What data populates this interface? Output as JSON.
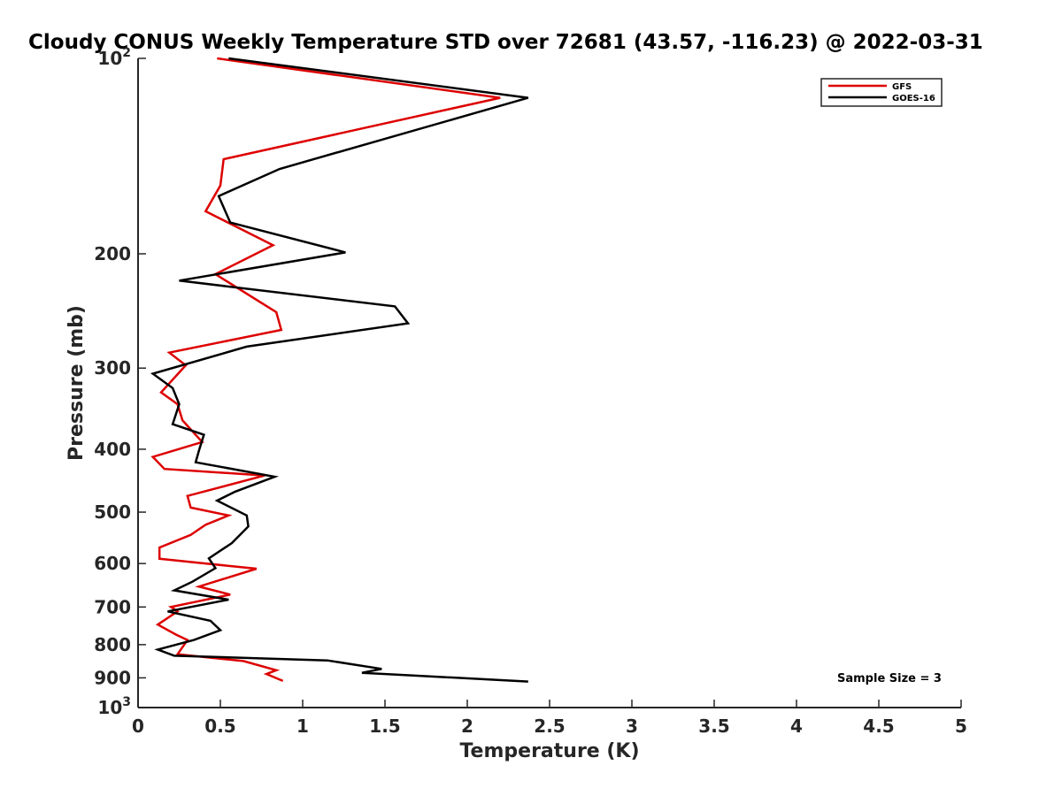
{
  "chart_data": {
    "type": "line",
    "title": "Cloudy CONUS Weekly Temperature STD over 72681 (43.57, -116.23) @ 2022-03-31",
    "xlabel": "Temperature (K)",
    "ylabel": "Pressure (mb)",
    "xlim": [
      0,
      5
    ],
    "ylim": [
      100,
      1000
    ],
    "y_scale": "log",
    "y_reversed": true,
    "x_ticks": [
      "0",
      "0.5",
      "1",
      "1.5",
      "2",
      "2.5",
      "3",
      "3.5",
      "4",
      "4.5",
      "5"
    ],
    "y_ticks": [
      {
        "value": 100,
        "base": "10",
        "exp": "2"
      },
      {
        "value": 200,
        "label": "200"
      },
      {
        "value": 300,
        "label": "300"
      },
      {
        "value": 400,
        "label": "400"
      },
      {
        "value": 500,
        "label": "500"
      },
      {
        "value": 600,
        "label": "600"
      },
      {
        "value": 700,
        "label": "700"
      },
      {
        "value": 800,
        "label": "800"
      },
      {
        "value": 900,
        "label": "900"
      },
      {
        "value": 1000,
        "base": "10",
        "exp": "3"
      }
    ],
    "grid": false,
    "legend_position": "top-right",
    "annotation": "Sample Size = 3",
    "series": [
      {
        "name": "GFS",
        "color": "#dd0000",
        "points": [
          [
            0.48,
            100
          ],
          [
            2.2,
            115
          ],
          [
            0.52,
            143
          ],
          [
            0.5,
            157
          ],
          [
            0.41,
            172
          ],
          [
            0.82,
            194
          ],
          [
            0.47,
            215
          ],
          [
            0.84,
            246
          ],
          [
            0.87,
            262
          ],
          [
            0.19,
            284
          ],
          [
            0.29,
            297
          ],
          [
            0.14,
            327
          ],
          [
            0.24,
            341
          ],
          [
            0.27,
            361
          ],
          [
            0.39,
            390
          ],
          [
            0.09,
            411
          ],
          [
            0.16,
            429
          ],
          [
            0.77,
            439
          ],
          [
            0.3,
            472
          ],
          [
            0.32,
            492
          ],
          [
            0.55,
            506
          ],
          [
            0.41,
            523
          ],
          [
            0.32,
            542
          ],
          [
            0.13,
            567
          ],
          [
            0.13,
            590
          ],
          [
            0.72,
            611
          ],
          [
            0.37,
            651
          ],
          [
            0.56,
            670
          ],
          [
            0.2,
            700
          ],
          [
            0.24,
            711
          ],
          [
            0.12,
            745
          ],
          [
            0.23,
            772
          ],
          [
            0.3,
            787
          ],
          [
            0.24,
            828
          ],
          [
            0.64,
            848
          ],
          [
            0.84,
            876
          ],
          [
            0.78,
            888
          ],
          [
            0.88,
            910
          ]
        ]
      },
      {
        "name": "GOES-16",
        "color": "#000000",
        "points": [
          [
            0.55,
            100
          ],
          [
            2.37,
            115
          ],
          [
            0.86,
            148
          ],
          [
            0.49,
            163
          ],
          [
            0.56,
            179
          ],
          [
            1.26,
            199
          ],
          [
            0.25,
            220
          ],
          [
            1.56,
            241
          ],
          [
            1.64,
            256
          ],
          [
            0.66,
            278
          ],
          [
            0.09,
            306
          ],
          [
            0.21,
            322
          ],
          [
            0.25,
            341
          ],
          [
            0.21,
            366
          ],
          [
            0.4,
            380
          ],
          [
            0.37,
            402
          ],
          [
            0.35,
            419
          ],
          [
            0.83,
            441
          ],
          [
            0.59,
            465
          ],
          [
            0.48,
            480
          ],
          [
            0.66,
            506
          ],
          [
            0.67,
            526
          ],
          [
            0.57,
            558
          ],
          [
            0.43,
            589
          ],
          [
            0.47,
            610
          ],
          [
            0.33,
            640
          ],
          [
            0.22,
            660
          ],
          [
            0.55,
            682
          ],
          [
            0.18,
            711
          ],
          [
            0.44,
            735
          ],
          [
            0.5,
            760
          ],
          [
            0.34,
            787
          ],
          [
            0.12,
            814
          ],
          [
            0.22,
            832
          ],
          [
            1.15,
            846
          ],
          [
            1.48,
            872
          ],
          [
            1.36,
            884
          ],
          [
            2.37,
            912
          ]
        ]
      }
    ]
  }
}
